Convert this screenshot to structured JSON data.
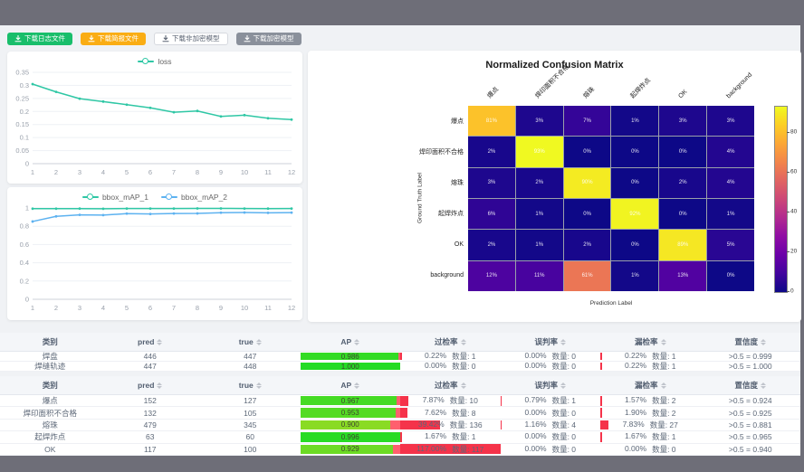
{
  "toolbar": {
    "buttons": [
      {
        "label": "下载日志文件",
        "style": "green"
      },
      {
        "label": "下载简报文件",
        "style": "orange"
      },
      {
        "label": "下载非加密模型",
        "style": "plain"
      },
      {
        "label": "下载加密模型",
        "style": "gray"
      }
    ]
  },
  "colors": {
    "green": "#19be6b",
    "orange": "#faad14",
    "gray": "#8a909b",
    "teal": "#2fc7a5",
    "blue": "#5db2f0",
    "red_bar": "#f5334a"
  },
  "chart_data": [
    {
      "type": "line",
      "title": "",
      "legend": [
        "loss"
      ],
      "x": [
        1,
        2,
        3,
        4,
        5,
        6,
        7,
        8,
        9,
        10,
        11,
        12
      ],
      "series": [
        {
          "name": "loss",
          "color": "#2fc7a5",
          "values": [
            0.305,
            0.275,
            0.249,
            0.238,
            0.226,
            0.214,
            0.197,
            0.202,
            0.181,
            0.186,
            0.174,
            0.169
          ]
        }
      ],
      "ylim": [
        0,
        0.35
      ],
      "ytick_values": [
        0,
        0.05,
        0.1,
        0.15,
        0.2,
        0.25,
        0.3,
        0.35
      ],
      "ytick_labels": [
        "0",
        "0.05",
        "0.1",
        "0.15",
        "0.2",
        "0.25",
        "0.3",
        "0.35"
      ],
      "grid": true,
      "legend_position": "top"
    },
    {
      "type": "line",
      "title": "",
      "legend": [
        "bbox_mAP_1",
        "bbox_mAP_2"
      ],
      "x": [
        1,
        2,
        3,
        4,
        5,
        6,
        7,
        8,
        9,
        10,
        11,
        12
      ],
      "series": [
        {
          "name": "bbox_mAP_1",
          "color": "#2fc7a5",
          "values": [
            0.992,
            0.992,
            0.993,
            0.991,
            0.994,
            0.994,
            0.994,
            0.995,
            0.995,
            0.994,
            0.993,
            0.994
          ]
        },
        {
          "name": "bbox_mAP_2",
          "color": "#5db2f0",
          "values": [
            0.852,
            0.908,
            0.924,
            0.922,
            0.938,
            0.934,
            0.939,
            0.94,
            0.948,
            0.95,
            0.947,
            0.949
          ]
        }
      ],
      "ylim": [
        0,
        1
      ],
      "ytick_values": [
        0,
        0.2,
        0.4,
        0.6,
        0.8,
        1
      ],
      "ytick_labels": [
        "0",
        "0.2",
        "0.4",
        "0.6",
        "0.8",
        "1"
      ],
      "grid": true,
      "legend_position": "top"
    },
    {
      "type": "heatmap",
      "title": "Normalized Confusion Matrix",
      "xlabel": "Prediction Label",
      "ylabel": "Ground Truth Label",
      "labels": [
        "爆点",
        "焊印面积不合格",
        "熔珠",
        "起焊炸点",
        "OK",
        "background"
      ],
      "unit": "%",
      "vmax": 93,
      "colorbar_ticks": [
        0,
        20,
        40,
        60,
        80
      ],
      "matrix": [
        [
          81,
          3,
          7,
          1,
          3,
          3
        ],
        [
          2,
          93,
          0,
          0,
          0,
          4
        ],
        [
          3,
          2,
          90,
          0,
          2,
          4
        ],
        [
          6,
          1,
          0,
          92,
          0,
          1
        ],
        [
          2,
          1,
          2,
          0,
          89,
          5
        ],
        [
          12,
          11,
          61,
          1,
          13,
          0
        ]
      ]
    }
  ],
  "tables": {
    "headers": [
      "类别",
      "pred",
      "true",
      "AP",
      "过检率",
      "误判率",
      "漏检率",
      "置信度"
    ],
    "sortable": [
      false,
      true,
      true,
      true,
      true,
      true,
      true,
      true
    ],
    "qty_label": "数量:",
    "groups": [
      {
        "rows": [
          {
            "class": "焊盘",
            "pred": "446",
            "true": "447",
            "ap": 0.986,
            "ap_text": "0.986",
            "overkill": {
              "value": 0.22,
              "text": "0.22%",
              "qty": "1"
            },
            "misjudge": {
              "value": 0,
              "text": "0.00%",
              "qty": "0"
            },
            "miss": {
              "value": 0.22,
              "text": "0.22%",
              "qty": "1"
            },
            "confidence": ">0.5 = 0.999"
          },
          {
            "class": "焊缝轨迹",
            "pred": "447",
            "true": "448",
            "ap": 1.0,
            "ap_text": "1.000",
            "overkill": {
              "value": 0,
              "text": "0.00%",
              "qty": "0"
            },
            "misjudge": {
              "value": 0,
              "text": "0.00%",
              "qty": "0"
            },
            "miss": {
              "value": 0.22,
              "text": "0.22%",
              "qty": "1"
            },
            "confidence": ">0.5 = 1.000"
          }
        ]
      },
      {
        "rows": [
          {
            "class": "爆点",
            "pred": "152",
            "true": "127",
            "ap": 0.967,
            "ap_text": "0.967",
            "overkill": {
              "value": 7.87,
              "text": "7.87%",
              "qty": "10"
            },
            "misjudge": {
              "value": 0.79,
              "text": "0.79%",
              "qty": "1"
            },
            "miss": {
              "value": 1.57,
              "text": "1.57%",
              "qty": "2"
            },
            "confidence": ">0.5 = 0.924"
          },
          {
            "class": "焊印面积不合格",
            "pred": "132",
            "true": "105",
            "ap": 0.953,
            "ap_text": "0.953",
            "overkill": {
              "value": 7.62,
              "text": "7.62%",
              "qty": "8"
            },
            "misjudge": {
              "value": 0,
              "text": "0.00%",
              "qty": "0"
            },
            "miss": {
              "value": 1.9,
              "text": "1.90%",
              "qty": "2"
            },
            "confidence": ">0.5 = 0.925"
          },
          {
            "class": "熔珠",
            "pred": "479",
            "true": "345",
            "ap": 0.9,
            "ap_text": "0.900",
            "overkill": {
              "value": 39.42,
              "text": "39.42%",
              "qty": "136"
            },
            "misjudge": {
              "value": 1.16,
              "text": "1.16%",
              "qty": "4"
            },
            "miss": {
              "value": 7.83,
              "text": "7.83%",
              "qty": "27"
            },
            "confidence": ">0.5 = 0.881"
          },
          {
            "class": "起焊炸点",
            "pred": "63",
            "true": "60",
            "ap": 0.996,
            "ap_text": "0.996",
            "overkill": {
              "value": 1.67,
              "text": "1.67%",
              "qty": "1"
            },
            "misjudge": {
              "value": 0,
              "text": "0.00%",
              "qty": "0"
            },
            "miss": {
              "value": 1.67,
              "text": "1.67%",
              "qty": "1"
            },
            "confidence": ">0.5 = 0.965"
          },
          {
            "class": "OK",
            "pred": "117",
            "true": "100",
            "ap": 0.929,
            "ap_text": "0.929",
            "overkill": {
              "value": 117,
              "text": "117.00%",
              "qty": "117"
            },
            "misjudge": {
              "value": 0,
              "text": "0.00%",
              "qty": "0"
            },
            "miss": {
              "value": 0,
              "text": "0.00%",
              "qty": "0"
            },
            "confidence": ">0.5 = 0.940"
          }
        ]
      }
    ]
  }
}
